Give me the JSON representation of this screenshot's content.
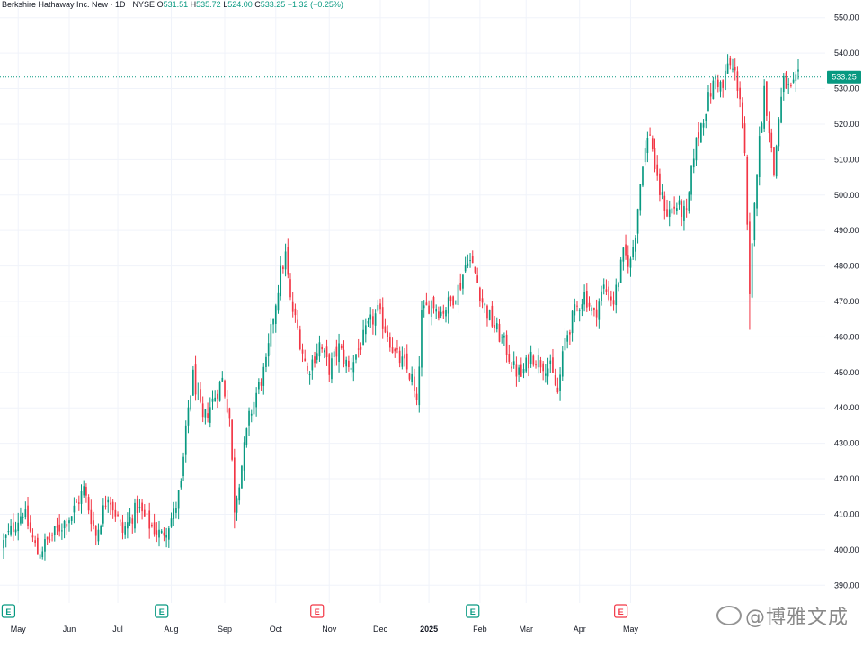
{
  "header": {
    "symbol": "Berkshire Hathaway Inc. New · 1D · NYSE",
    "open_label": "O",
    "open": "531.51",
    "high_label": "H",
    "high": "535.72",
    "low_label": "L",
    "low": "524.00",
    "close_label": "C",
    "close": "533.25",
    "change": "−1.32 (−0.25%)"
  },
  "watermark": "@博雅文成",
  "chart_data": {
    "type": "candlestick",
    "title": "Berkshire Hathaway Inc. New · 1D · NYSE",
    "y_axis": {
      "position": "right",
      "min": 385,
      "max": 555,
      "ticks": [
        390,
        400,
        410,
        420,
        430,
        440,
        450,
        460,
        470,
        480,
        490,
        500,
        510,
        520,
        530,
        540,
        550
      ]
    },
    "x_axis": {
      "labels": [
        "May",
        "Jun",
        "Jul",
        "Aug",
        "Sep",
        "Oct",
        "Nov",
        "Dec",
        "2025",
        "Feb",
        "Mar",
        "Apr",
        "May"
      ],
      "bold_labels": [
        "2025"
      ]
    },
    "last_price": 533.25,
    "last_price_label": "533.25",
    "earnings_markers": [
      {
        "label": "E",
        "date_index": 2,
        "color": "#089981"
      },
      {
        "label": "E",
        "date_index": 65,
        "color": "#089981"
      },
      {
        "label": "E",
        "date_index": 129,
        "color": "#f23645"
      },
      {
        "label": "E",
        "date_index": 193,
        "color": "#089981"
      },
      {
        "label": "E",
        "date_index": 254,
        "color": "#f23645"
      }
    ],
    "up_color": "#089981",
    "down_color": "#f23645",
    "close_path": [
      [
        0,
        402
      ],
      [
        8,
        411
      ],
      [
        14,
        399
      ],
      [
        20,
        404
      ],
      [
        28,
        410
      ],
      [
        33,
        417
      ],
      [
        38,
        404
      ],
      [
        43,
        416
      ],
      [
        49,
        405
      ],
      [
        55,
        412
      ],
      [
        60,
        407
      ],
      [
        65,
        404
      ],
      [
        70,
        410
      ],
      [
        73,
        418
      ],
      [
        76,
        440
      ],
      [
        78,
        449
      ],
      [
        82,
        436
      ],
      [
        86,
        442
      ],
      [
        90,
        448
      ],
      [
        93,
        437
      ],
      [
        95,
        412
      ],
      [
        98,
        424
      ],
      [
        101,
        437
      ],
      [
        104,
        444
      ],
      [
        108,
        452
      ],
      [
        111,
        466
      ],
      [
        114,
        478
      ],
      [
        116,
        483
      ],
      [
        118,
        470
      ],
      [
        121,
        462
      ],
      [
        125,
        450
      ],
      [
        130,
        458
      ],
      [
        134,
        451
      ],
      [
        138,
        457
      ],
      [
        142,
        451
      ],
      [
        147,
        458
      ],
      [
        151,
        464
      ],
      [
        154,
        467
      ],
      [
        158,
        461
      ],
      [
        161,
        455
      ],
      [
        165,
        452
      ],
      [
        168,
        448
      ],
      [
        170,
        440
      ],
      [
        172,
        466
      ],
      [
        176,
        470
      ],
      [
        180,
        467
      ],
      [
        184,
        470
      ],
      [
        188,
        475
      ],
      [
        191,
        483
      ],
      [
        194,
        478
      ],
      [
        197,
        470
      ],
      [
        201,
        464
      ],
      [
        206,
        458
      ],
      [
        210,
        451
      ],
      [
        213,
        449
      ],
      [
        217,
        455
      ],
      [
        221,
        453
      ],
      [
        225,
        451
      ],
      [
        228,
        444
      ],
      [
        231,
        459
      ],
      [
        235,
        467
      ],
      [
        239,
        472
      ],
      [
        243,
        466
      ],
      [
        247,
        474
      ],
      [
        251,
        470
      ],
      [
        255,
        483
      ],
      [
        258,
        481
      ],
      [
        260,
        490
      ],
      [
        263,
        510
      ],
      [
        266,
        518
      ],
      [
        269,
        503
      ],
      [
        273,
        495
      ],
      [
        277,
        497
      ],
      [
        281,
        494
      ],
      [
        284,
        512
      ],
      [
        287,
        520
      ],
      [
        290,
        527
      ],
      [
        293,
        533
      ],
      [
        296,
        530
      ],
      [
        298,
        537
      ],
      [
        301,
        534
      ],
      [
        303,
        528
      ],
      [
        305,
        510
      ],
      [
        307,
        470
      ],
      [
        309,
        500
      ],
      [
        311,
        515
      ],
      [
        313,
        530
      ],
      [
        315,
        519
      ],
      [
        317,
        506
      ],
      [
        319,
        522
      ],
      [
        321,
        532
      ],
      [
        324,
        529
      ],
      [
        327,
        533
      ]
    ],
    "series": [
      {
        "values": "see close_path (day_index, close) control points for the daily candles"
      }
    ]
  }
}
